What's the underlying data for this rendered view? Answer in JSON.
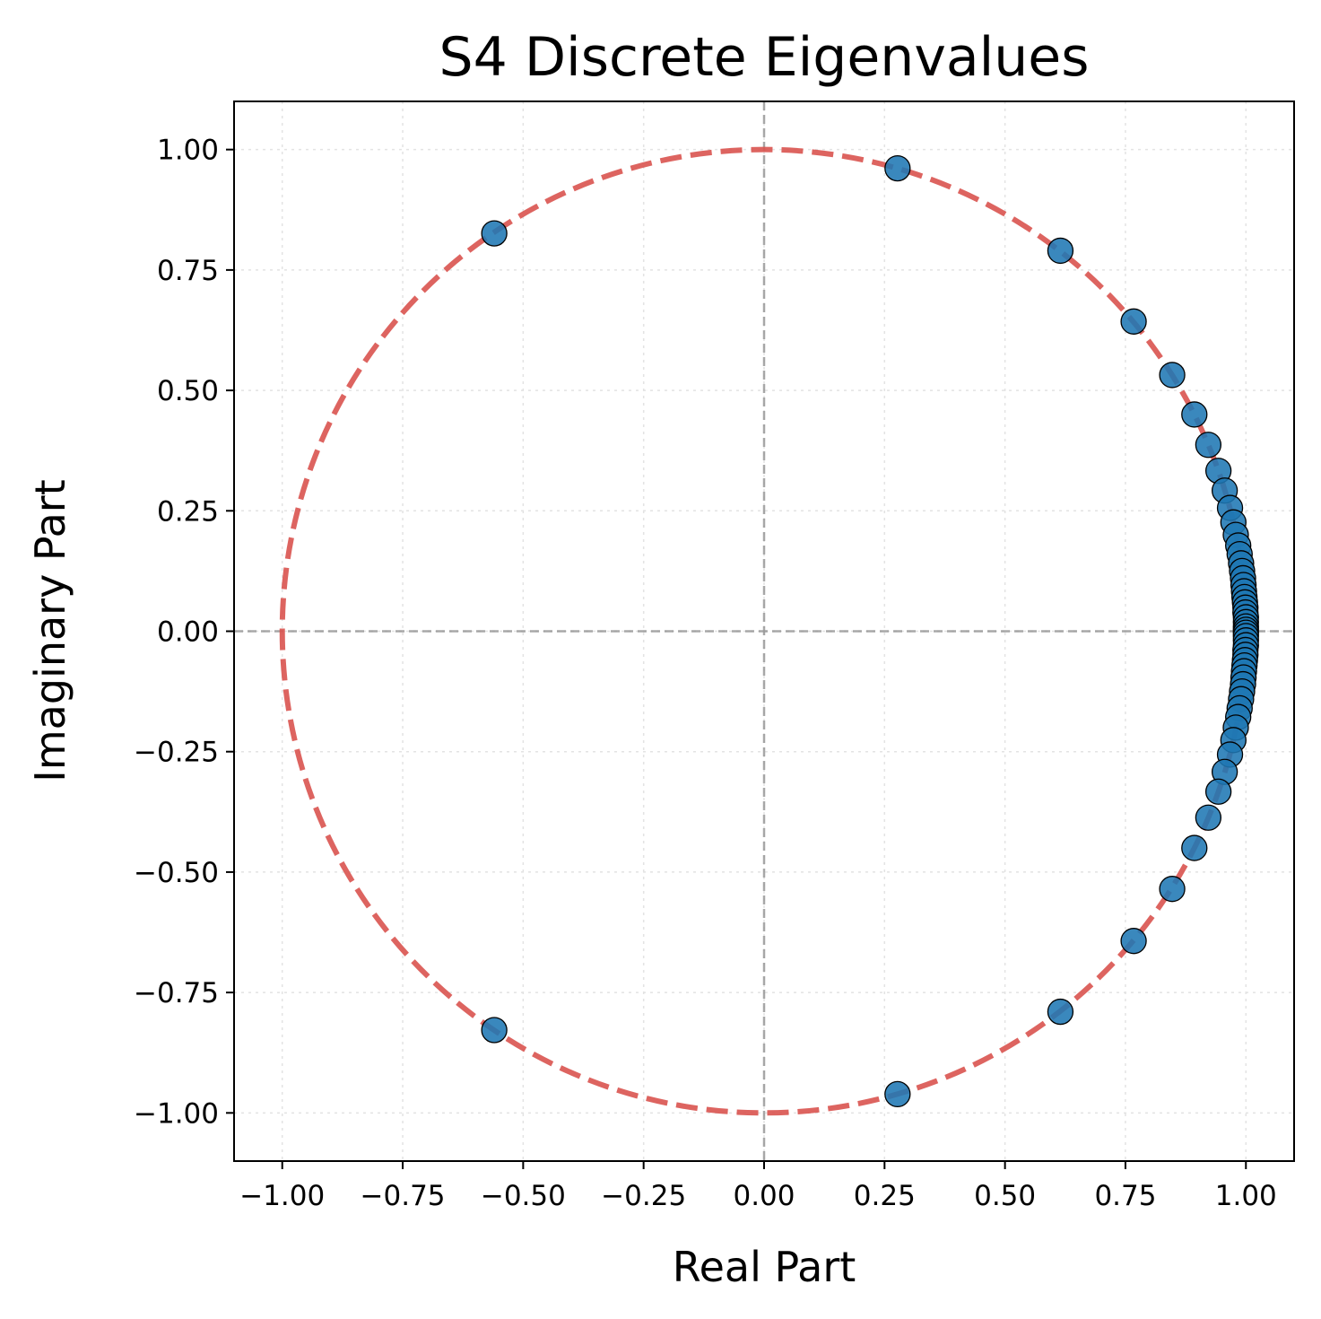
{
  "chart_data": {
    "type": "scatter",
    "title": "S4 Discrete Eigenvalues",
    "xlabel": "Real Part",
    "ylabel": "Imaginary Part",
    "xlim": [
      -1.1,
      1.1
    ],
    "ylim": [
      -1.1,
      1.1
    ],
    "grid": true,
    "x_ticks": [
      -1.0,
      -0.75,
      -0.5,
      -0.25,
      0.0,
      0.25,
      0.5,
      0.75,
      1.0
    ],
    "y_ticks": [
      -1.0,
      -0.75,
      -0.5,
      -0.25,
      0.0,
      0.25,
      0.5,
      0.75,
      1.0
    ],
    "x_tick_labels": [
      "−1.00",
      "−0.75",
      "−0.50",
      "−0.25",
      "0.00",
      "0.25",
      "0.50",
      "0.75",
      "1.00"
    ],
    "y_tick_labels": [
      "−1.00",
      "−0.75",
      "−0.50",
      "−0.25",
      "0.00",
      "0.25",
      "0.50",
      "0.75",
      "1.00"
    ],
    "reference": {
      "shape": "unit-circle",
      "radius": 1.0,
      "style": "dashed",
      "color": "#d9534f"
    },
    "zero_lines": {
      "style": "dashed",
      "color": "#999999"
    },
    "marker_color": "#1f77b4",
    "marker_edge": "#000000",
    "points": [
      {
        "x": -0.56,
        "y": 0.826
      },
      {
        "x": 0.277,
        "y": 0.961
      },
      {
        "x": 0.615,
        "y": 0.79
      },
      {
        "x": 0.767,
        "y": 0.643
      },
      {
        "x": 0.847,
        "y": 0.532
      },
      {
        "x": 0.893,
        "y": 0.45
      },
      {
        "x": 0.922,
        "y": 0.387
      },
      {
        "x": 0.943,
        "y": 0.333
      },
      {
        "x": 0.956,
        "y": 0.292
      },
      {
        "x": 0.967,
        "y": 0.256
      },
      {
        "x": 0.974,
        "y": 0.226
      },
      {
        "x": 0.979,
        "y": 0.2
      },
      {
        "x": 0.984,
        "y": 0.178
      },
      {
        "x": 0.987,
        "y": 0.16
      },
      {
        "x": 0.99,
        "y": 0.141
      },
      {
        "x": 0.992,
        "y": 0.125
      },
      {
        "x": 0.994,
        "y": 0.11
      },
      {
        "x": 0.995,
        "y": 0.096
      },
      {
        "x": 0.996,
        "y": 0.083
      },
      {
        "x": 0.997,
        "y": 0.071
      },
      {
        "x": 0.998,
        "y": 0.06
      },
      {
        "x": 0.999,
        "y": 0.049
      },
      {
        "x": 0.999,
        "y": 0.039
      },
      {
        "x": 1.0,
        "y": 0.029
      },
      {
        "x": 1.0,
        "y": 0.019
      },
      {
        "x": 1.0,
        "y": 0.01
      },
      {
        "x": 1.0,
        "y": 0.003
      },
      {
        "x": 1.0,
        "y": -0.003
      },
      {
        "x": 1.0,
        "y": -0.01
      },
      {
        "x": 1.0,
        "y": -0.019
      },
      {
        "x": 1.0,
        "y": -0.029
      },
      {
        "x": 0.999,
        "y": -0.039
      },
      {
        "x": 0.999,
        "y": -0.049
      },
      {
        "x": 0.998,
        "y": -0.06
      },
      {
        "x": 0.997,
        "y": -0.071
      },
      {
        "x": 0.996,
        "y": -0.083
      },
      {
        "x": 0.995,
        "y": -0.096
      },
      {
        "x": 0.994,
        "y": -0.11
      },
      {
        "x": 0.992,
        "y": -0.125
      },
      {
        "x": 0.99,
        "y": -0.141
      },
      {
        "x": 0.987,
        "y": -0.16
      },
      {
        "x": 0.984,
        "y": -0.178
      },
      {
        "x": 0.979,
        "y": -0.2
      },
      {
        "x": 0.974,
        "y": -0.226
      },
      {
        "x": 0.967,
        "y": -0.256
      },
      {
        "x": 0.956,
        "y": -0.292
      },
      {
        "x": 0.943,
        "y": -0.333
      },
      {
        "x": 0.922,
        "y": -0.387
      },
      {
        "x": 0.893,
        "y": -0.45
      },
      {
        "x": 0.847,
        "y": -0.535
      },
      {
        "x": 0.767,
        "y": -0.643
      },
      {
        "x": 0.615,
        "y": -0.79
      },
      {
        "x": 0.277,
        "y": -0.961
      },
      {
        "x": -0.56,
        "y": -0.828
      }
    ]
  }
}
